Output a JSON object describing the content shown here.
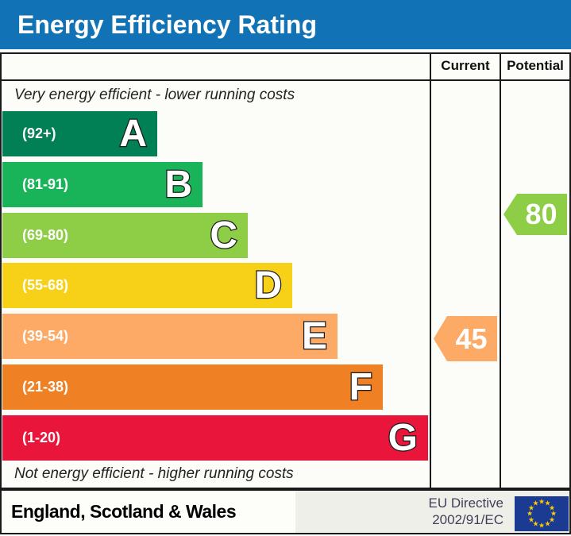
{
  "title_bar": {
    "title": "Energy Efficiency Rating"
  },
  "table": {
    "header": {
      "current": "Current",
      "potential": "Potential"
    },
    "top_note": "Very energy efficient - lower running costs",
    "bottom_note": "Not energy efficient - higher running costs"
  },
  "chart_data": {
    "type": "bar",
    "title": "Energy Efficiency Rating",
    "bands": [
      {
        "letter": "A",
        "range_label": "(92+)",
        "min": 92,
        "max": 100,
        "color": "#008054"
      },
      {
        "letter": "B",
        "range_label": "(81-91)",
        "min": 81,
        "max": 91,
        "color": "#19b459"
      },
      {
        "letter": "C",
        "range_label": "(69-80)",
        "min": 69,
        "max": 80,
        "color": "#8dce46"
      },
      {
        "letter": "D",
        "range_label": "(55-68)",
        "min": 55,
        "max": 68,
        "color": "#f7d117"
      },
      {
        "letter": "E",
        "range_label": "(39-54)",
        "min": 39,
        "max": 54,
        "color": "#fcaa65"
      },
      {
        "letter": "F",
        "range_label": "(21-38)",
        "min": 21,
        "max": 38,
        "color": "#ef8023"
      },
      {
        "letter": "G",
        "range_label": "(1-20)",
        "min": 1,
        "max": 20,
        "color": "#e9153b"
      }
    ],
    "current": {
      "value": "45",
      "band": "E",
      "color": "#fcaa65"
    },
    "potential": {
      "value": "80",
      "band": "C",
      "color": "#8dce46"
    },
    "value_range": [
      1,
      100
    ],
    "legend_position": "top-right-columns"
  },
  "footer": {
    "region": "England, Scotland & Wales",
    "directive_line1": "EU Directive",
    "directive_line2": "2002/91/EC",
    "eu_flag": {
      "background": "#1b3a91",
      "star_color": "#ffcc00",
      "star_count": 12
    }
  },
  "colors": {
    "title_bar_bg": "#1173b5",
    "border": "#1a1a1a",
    "title_text": "#ffffff"
  }
}
